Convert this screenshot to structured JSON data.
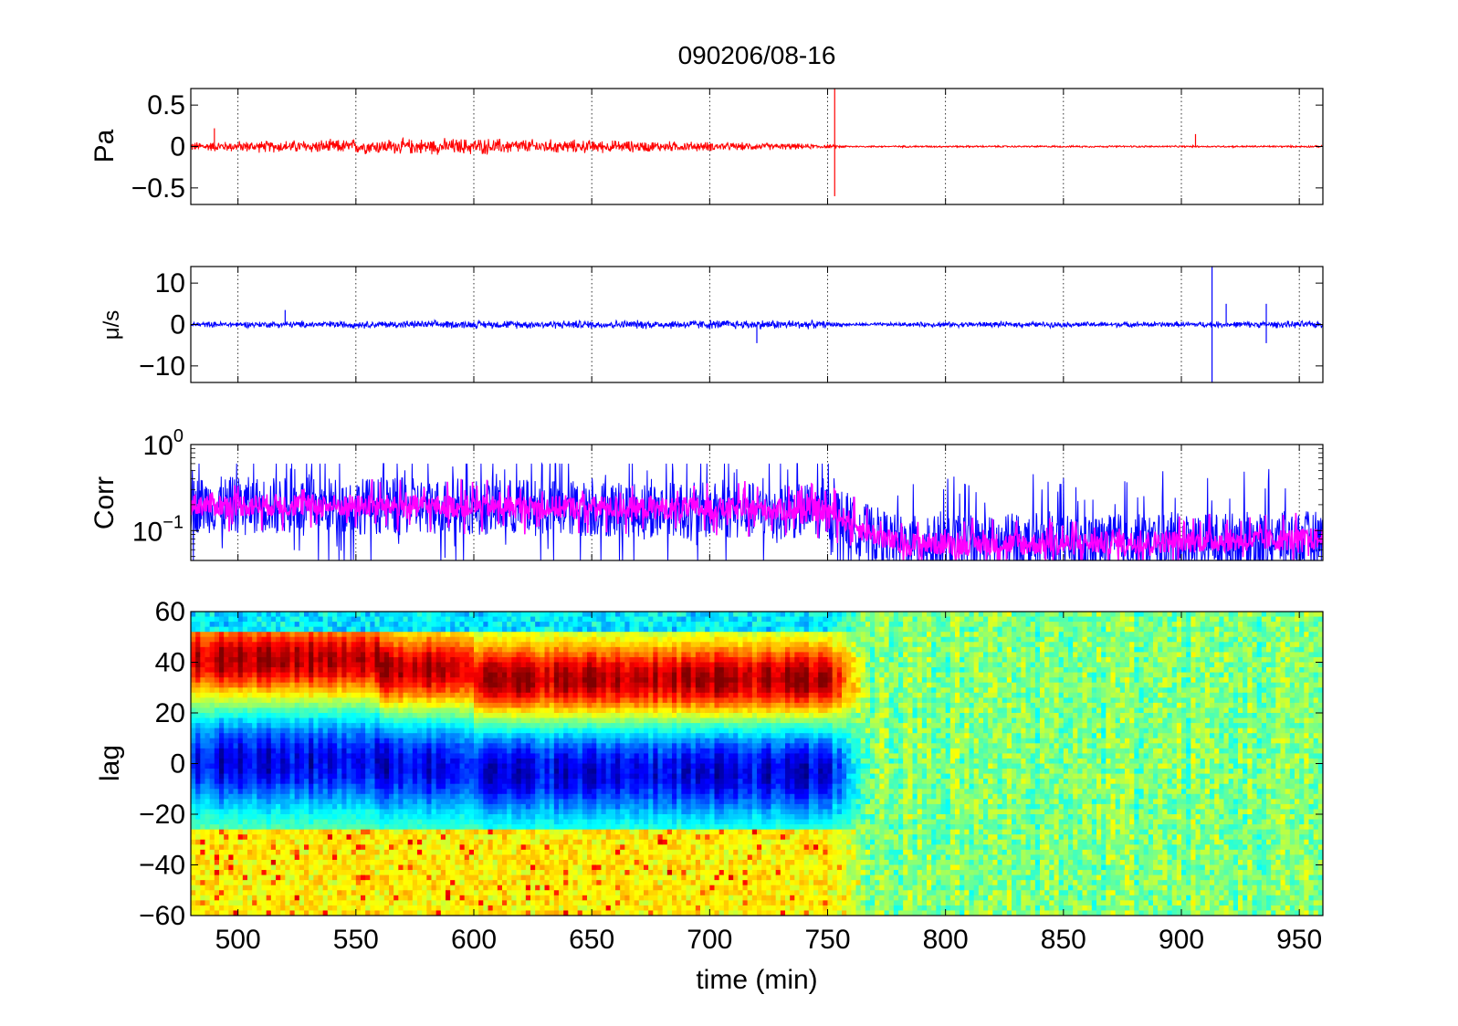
{
  "figure_title": "090206/08-16",
  "chart_data": [
    {
      "type": "line",
      "ylabel": "Pa",
      "xlim": [
        480,
        960
      ],
      "ylim": [
        -0.7,
        0.7
      ],
      "xticks": [
        500,
        550,
        600,
        650,
        700,
        750,
        800,
        850,
        900,
        950
      ],
      "yticks": [
        0.5,
        0,
        -0.5
      ],
      "ytick_labels": [
        "0.5",
        "0",
        "−0.5"
      ],
      "grid": "x-dotted",
      "series": [
        {
          "color": "#ff0000",
          "amplitude_envelope": {
            "x": [
              480,
              500,
              550,
              600,
              650,
              700,
              740,
              750,
              760,
              800,
              850,
              900,
              960
            ],
            "y": [
              0.05,
              0.06,
              0.08,
              0.09,
              0.07,
              0.05,
              0.03,
              0.02,
              0.01,
              0.01,
              0.01,
              0.01,
              0.01
            ]
          },
          "spikes": [
            {
              "x": 490,
              "y": 0.22
            },
            {
              "x": 753,
              "y": 0.8
            },
            {
              "x": 753,
              "y": -0.6
            },
            {
              "x": 906,
              "y": 0.15
            }
          ]
        }
      ]
    },
    {
      "type": "line",
      "ylabel": "μ/s",
      "xlim": [
        480,
        960
      ],
      "ylim": [
        -14,
        14
      ],
      "xticks": [
        500,
        550,
        600,
        650,
        700,
        750,
        800,
        850,
        900,
        950
      ],
      "yticks": [
        10,
        0,
        -10
      ],
      "ytick_labels": [
        "10",
        "0",
        "−10"
      ],
      "grid": "x-dotted",
      "series": [
        {
          "color": "#0000ff",
          "amplitude_envelope": {
            "x": [
              480,
              550,
              650,
              700,
              740,
              760,
              800,
              850,
              900,
              960
            ],
            "y": [
              0.6,
              0.8,
              0.9,
              1.0,
              1.0,
              0.3,
              0.6,
              0.6,
              0.6,
              0.8
            ]
          },
          "spikes": [
            {
              "x": 520,
              "y": 3.5
            },
            {
              "x": 720,
              "y": -4.5
            },
            {
              "x": 913,
              "y": 14
            },
            {
              "x": 913,
              "y": -14
            },
            {
              "x": 919,
              "y": 5
            },
            {
              "x": 936,
              "y": 5
            },
            {
              "x": 936,
              "y": -4.5
            }
          ]
        }
      ]
    },
    {
      "type": "line",
      "ylabel": "Corr",
      "yscale": "log",
      "xlim": [
        480,
        960
      ],
      "ylim": [
        0.045,
        1
      ],
      "xticks": [
        500,
        550,
        600,
        650,
        700,
        750,
        800,
        850,
        900,
        950
      ],
      "ytick_labels": [
        "10^0",
        "10^-1"
      ],
      "grid": "x-dotted",
      "series": [
        {
          "color": "#0000ff",
          "level": {
            "x": [
              480,
              600,
              700,
              750,
              765,
              780,
              850,
              900,
              960
            ],
            "y": [
              0.2,
              0.19,
              0.17,
              0.17,
              0.1,
              0.07,
              0.07,
              0.075,
              0.08
            ]
          }
        },
        {
          "color": "#ff00ff",
          "level": {
            "x": [
              480,
              600,
              700,
              750,
              765,
              780,
              850,
              900,
              960
            ],
            "y": [
              0.2,
              0.19,
              0.18,
              0.17,
              0.1,
              0.07,
              0.07,
              0.075,
              0.08
            ]
          }
        }
      ]
    },
    {
      "type": "heatmap",
      "ylabel": "lag",
      "xlabel": "time (min)",
      "xlim": [
        480,
        960
      ],
      "ylim": [
        -60,
        60
      ],
      "xticks": [
        500,
        550,
        600,
        650,
        700,
        750,
        800,
        850,
        900,
        950
      ],
      "yticks": [
        60,
        40,
        20,
        0,
        -20,
        -40,
        -60
      ],
      "ytick_labels": [
        "60",
        "40",
        "20",
        "0",
        "−20",
        "−40",
        "−60"
      ],
      "colormap": "jet",
      "structure": {
        "positive_band_lag": [
          20,
          50
        ],
        "negative_band_lag": [
          -20,
          15
        ],
        "active_until": 768
      }
    }
  ]
}
